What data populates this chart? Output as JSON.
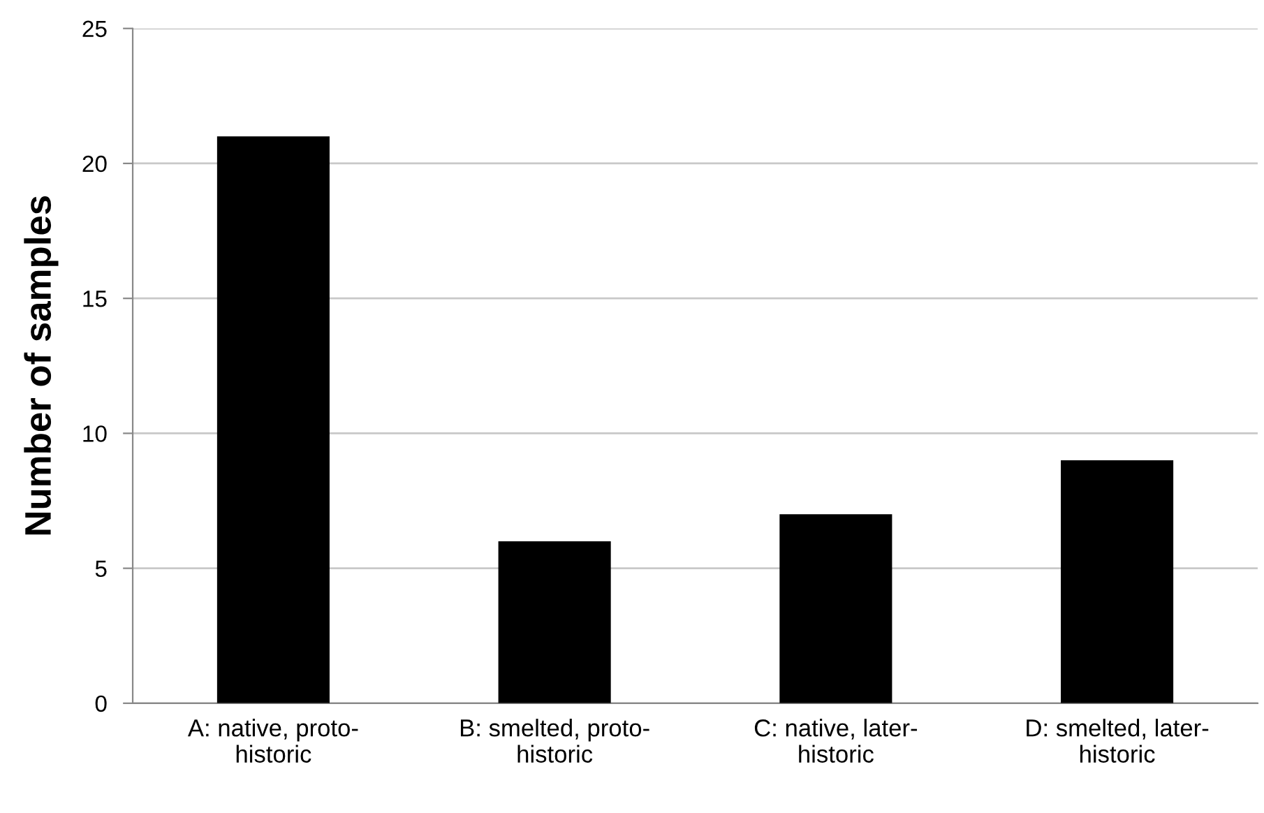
{
  "chart_data": {
    "type": "bar",
    "ylabel": "Number of samples",
    "categories": [
      "A: native, proto-historic",
      "B: smelted, proto-historic",
      "C: native, later-historic",
      "D: smelted, later-historic"
    ],
    "values": [
      21,
      6,
      7,
      9
    ],
    "color": "#000000",
    "ylim": [
      0,
      25
    ],
    "yticks": [
      0,
      5,
      10,
      15,
      20,
      25
    ],
    "grid": "y"
  }
}
